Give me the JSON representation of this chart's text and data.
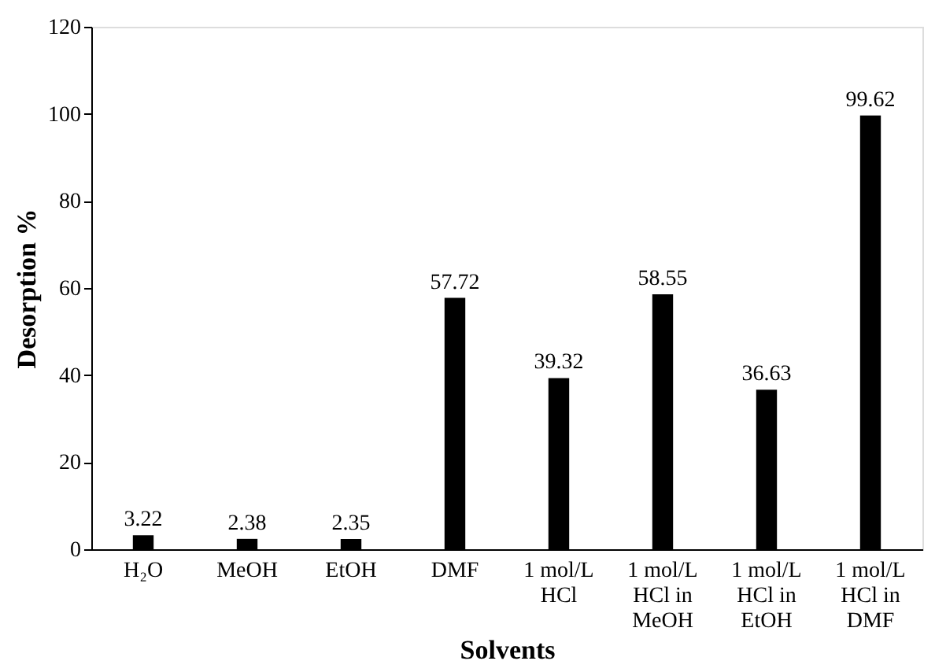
{
  "chart_data": {
    "type": "bar",
    "xlabel": "Solvents",
    "ylabel": "Desorption  %",
    "categories": [
      "H₂O",
      "MeOH",
      "EtOH",
      "DMF",
      "1 mol/L\nHCl",
      "1 mol/L\nHCl in\nMeOH",
      "1 mol/L\nHCl in\nEtOH",
      "1 mol/L\nHCl in\nDMF"
    ],
    "values": [
      3.22,
      2.38,
      2.35,
      57.72,
      39.32,
      58.55,
      36.63,
      99.62
    ],
    "color": "#000000",
    "ylim": [
      0,
      120
    ],
    "yticks": [
      0,
      20,
      40,
      60,
      80,
      100,
      120
    ],
    "grid": false,
    "data_labels": true
  }
}
